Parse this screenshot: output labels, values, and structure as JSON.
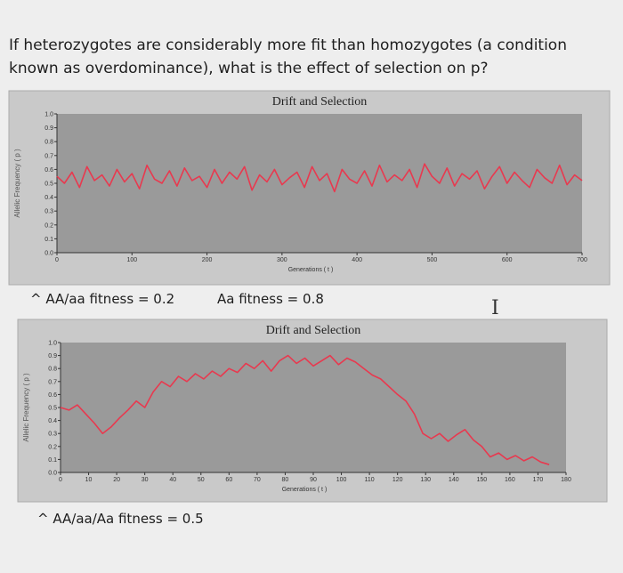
{
  "question": "If heterozygotes are considerably more fit than homozygotes (a condition known as overdominance), what is the effect of selection on p?",
  "captions": {
    "left_fitness": "^ AA/aa fitness = 0.2",
    "mid_fitness": "Aa fitness = 0.8",
    "bottom_fitness": "^ AA/aa/Aa fitness = 0.5"
  },
  "cursor_icon": "text-cursor-icon",
  "colors": {
    "line": "#e8394f",
    "plot_bg": "#9a9a9a",
    "frame_bg": "#c9c9c9"
  },
  "chart_data": [
    {
      "type": "line",
      "title": "Drift and Selection",
      "xlabel": "Generations ( t )",
      "ylabel": "Allelic Frequency ( p )",
      "xlim": [
        0,
        700
      ],
      "ylim": [
        0,
        1.0
      ],
      "xticks": [
        0,
        100,
        200,
        300,
        400,
        500,
        600,
        700
      ],
      "yticks": [
        0.0,
        0.1,
        0.2,
        0.3,
        0.4,
        0.5,
        0.6,
        0.7,
        0.8,
        0.9,
        1.0
      ],
      "series": [
        {
          "x": [
            0,
            10,
            20,
            30,
            40,
            50,
            60,
            70,
            80,
            90,
            100,
            110,
            120,
            130,
            140,
            150,
            160,
            170,
            180,
            190,
            200,
            210,
            220,
            230,
            240,
            250,
            260,
            270,
            280,
            290,
            300,
            310,
            320,
            330,
            340,
            350,
            360,
            370,
            380,
            390,
            400,
            410,
            420,
            430,
            440,
            450,
            460,
            470,
            480,
            490,
            500,
            510,
            520,
            530,
            540,
            550,
            560,
            570,
            580,
            590,
            600,
            610,
            620,
            630,
            640,
            650,
            660,
            670,
            680,
            690,
            700
          ],
          "values": [
            0.55,
            0.5,
            0.58,
            0.47,
            0.62,
            0.52,
            0.56,
            0.48,
            0.6,
            0.51,
            0.57,
            0.46,
            0.63,
            0.53,
            0.5,
            0.59,
            0.48,
            0.61,
            0.52,
            0.55,
            0.47,
            0.6,
            0.5,
            0.58,
            0.53,
            0.62,
            0.45,
            0.56,
            0.51,
            0.6,
            0.49,
            0.54,
            0.58,
            0.47,
            0.62,
            0.52,
            0.57,
            0.44,
            0.6,
            0.53,
            0.5,
            0.59,
            0.48,
            0.63,
            0.51,
            0.56,
            0.52,
            0.6,
            0.47,
            0.64,
            0.55,
            0.5,
            0.61,
            0.48,
            0.57,
            0.53,
            0.59,
            0.46,
            0.55,
            0.62,
            0.5,
            0.58,
            0.52,
            0.47,
            0.6,
            0.54,
            0.5,
            0.63,
            0.49,
            0.56,
            0.52
          ]
        }
      ]
    },
    {
      "type": "line",
      "title": "Drift and Selection",
      "xlabel": "Generations ( t )",
      "ylabel": "Allelic Frequency ( p )",
      "xlim": [
        0,
        180
      ],
      "ylim": [
        0,
        1.0
      ],
      "xticks": [
        0,
        10,
        20,
        30,
        40,
        50,
        60,
        70,
        80,
        90,
        100,
        110,
        120,
        130,
        140,
        150,
        160,
        170,
        180
      ],
      "yticks": [
        0.0,
        0.1,
        0.2,
        0.3,
        0.4,
        0.5,
        0.6,
        0.7,
        0.8,
        0.9,
        1.0
      ],
      "series": [
        {
          "x": [
            0,
            3,
            6,
            9,
            12,
            15,
            18,
            21,
            24,
            27,
            30,
            33,
            36,
            39,
            42,
            45,
            48,
            51,
            54,
            57,
            60,
            63,
            66,
            69,
            72,
            75,
            78,
            81,
            84,
            87,
            90,
            93,
            96,
            99,
            102,
            105,
            108,
            111,
            114,
            117,
            120,
            123,
            126,
            129,
            132,
            135,
            138,
            141,
            144,
            147,
            150,
            153,
            156,
            159,
            162,
            165,
            168,
            171,
            174
          ],
          "values": [
            0.5,
            0.48,
            0.52,
            0.45,
            0.38,
            0.3,
            0.35,
            0.42,
            0.48,
            0.55,
            0.5,
            0.62,
            0.7,
            0.66,
            0.74,
            0.7,
            0.76,
            0.72,
            0.78,
            0.74,
            0.8,
            0.77,
            0.84,
            0.8,
            0.86,
            0.78,
            0.86,
            0.9,
            0.84,
            0.88,
            0.82,
            0.86,
            0.9,
            0.83,
            0.88,
            0.85,
            0.8,
            0.75,
            0.72,
            0.66,
            0.6,
            0.55,
            0.45,
            0.3,
            0.26,
            0.3,
            0.24,
            0.29,
            0.33,
            0.25,
            0.2,
            0.12,
            0.15,
            0.1,
            0.13,
            0.09,
            0.12,
            0.08,
            0.06
          ]
        }
      ]
    }
  ]
}
